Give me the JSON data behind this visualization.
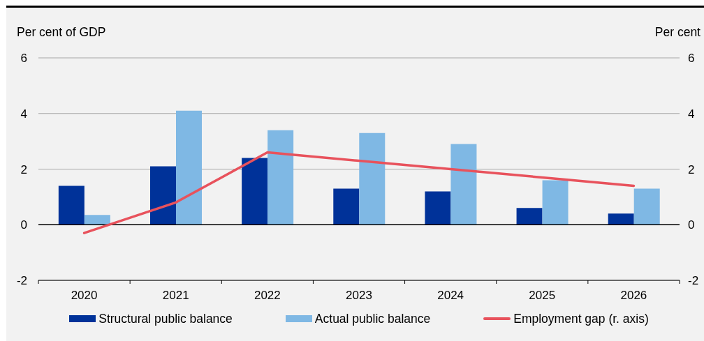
{
  "chart_data": {
    "type": "bar",
    "ylabel": "Per cent of GDP",
    "y2label": "Per cent",
    "categories": [
      "2020",
      "2021",
      "2022",
      "2023",
      "2024",
      "2025",
      "2026"
    ],
    "series": [
      {
        "name": "Structural public balance",
        "color": "#003299",
        "values": [
          1.4,
          2.1,
          2.4,
          1.3,
          1.2,
          0.6,
          0.4
        ]
      },
      {
        "name": "Actual public balance",
        "color": "#7fb8e4",
        "values": [
          0.35,
          4.1,
          3.4,
          3.3,
          2.9,
          1.6,
          1.3
        ]
      },
      {
        "name": "Employment gap (r. axis)",
        "type": "line",
        "axis": "y2",
        "color": "#e8525c",
        "values": [
          -0.3,
          0.8,
          2.6,
          2.3,
          2.0,
          1.7,
          1.4
        ]
      }
    ],
    "ylim": [
      -2,
      6
    ],
    "yticks": [
      -2,
      0,
      2,
      4,
      6
    ],
    "y2lim": [
      -2,
      6
    ],
    "y2ticks": [
      -2,
      0,
      2,
      4,
      6
    ],
    "grid": "y",
    "legend": "bottom",
    "marker": "none",
    "line_style": "solid",
    "ref_lines": [
      {
        "axis": "y",
        "value": 0,
        "color": "#000000"
      }
    ]
  }
}
